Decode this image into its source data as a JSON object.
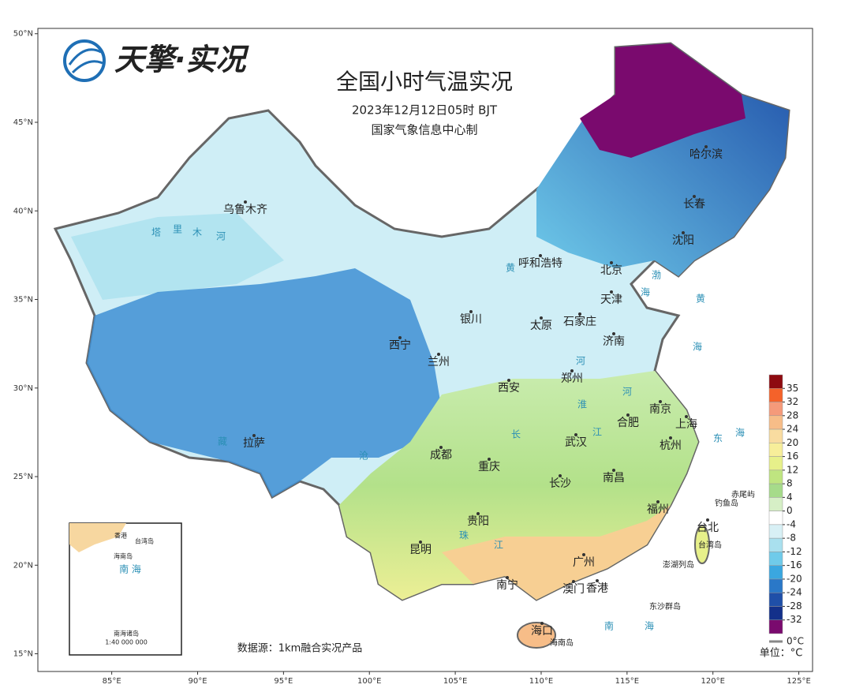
{
  "header": {
    "logo_text": "天擎·实况",
    "title": "全国小时气温实况",
    "subtitle": "2023年12月12日05时 BJT",
    "producer": "国家气象信息中心制"
  },
  "axes": {
    "lat_range": [
      50.3,
      14.0
    ],
    "lat_ticks": [
      {
        "value": 50,
        "label": "50°N"
      },
      {
        "value": 45,
        "label": "45°N"
      },
      {
        "value": 40,
        "label": "40°N"
      },
      {
        "value": 35,
        "label": "35°N"
      },
      {
        "value": 30,
        "label": "30°N"
      },
      {
        "value": 25,
        "label": "25°N"
      },
      {
        "value": 20,
        "label": "20°N"
      },
      {
        "value": 15,
        "label": "15°N"
      }
    ],
    "lon_range": [
      80.7,
      125.8
    ],
    "lon_ticks": [
      {
        "value": 85,
        "label": "85°E"
      },
      {
        "value": 90,
        "label": "90°E"
      },
      {
        "value": 95,
        "label": "95°E"
      },
      {
        "value": 100,
        "label": "100°E"
      },
      {
        "value": 105,
        "label": "105°E"
      },
      {
        "value": 110,
        "label": "110°E"
      },
      {
        "value": 115,
        "label": "115°E"
      },
      {
        "value": 120,
        "label": "120°E"
      },
      {
        "value": 125,
        "label": "125°E"
      }
    ]
  },
  "cities": [
    "乌鲁木齐",
    "哈尔滨",
    "长春",
    "沈阳",
    "呼和浩特",
    "北京",
    "天津",
    "银川",
    "太原",
    "石家庄",
    "济南",
    "西宁",
    "兰州",
    "西安",
    "郑州",
    "南京",
    "合肥",
    "上海",
    "拉萨",
    "成都",
    "武汉",
    "杭州",
    "重庆",
    "长沙",
    "南昌",
    "福州",
    "贵阳",
    "台北",
    "昆明",
    "广州",
    "南宁",
    "澳门",
    "香港",
    "海口"
  ],
  "water_labels": [
    "塔",
    "里",
    "木",
    "河",
    "黄",
    "河",
    "渤",
    "海",
    "黄",
    "海",
    "东",
    "海",
    "长",
    "江",
    "珠",
    "江",
    "淮",
    "河",
    "藏",
    "沧",
    "南",
    "海"
  ],
  "islands": [
    "赤尾屿",
    "钓鱼岛",
    "台湾岛",
    "澎湖列岛",
    "东沙群岛",
    "海南岛"
  ],
  "inset": {
    "labels": [
      "香港",
      "台湾岛",
      "海南岛",
      "南 海",
      "南海诸岛",
      "1:40 000 000"
    ]
  },
  "legend": {
    "ticks": [
      35,
      32,
      28,
      24,
      20,
      16,
      12,
      8,
      4,
      0,
      -4,
      -8,
      -12,
      -16,
      -20,
      -24,
      -28,
      -32
    ],
    "colors": [
      "#8e0b10",
      "#f4622a",
      "#f59a7a",
      "#f7bd88",
      "#f9dca0",
      "#f7ee9a",
      "#e7f08a",
      "#bfe580",
      "#a6db8a",
      "#d6efc6",
      "#ffffff",
      "#d8f0f5",
      "#a9e0ee",
      "#6fcbea",
      "#3aa7e0",
      "#2a78c8",
      "#1f4fa8",
      "#13308a",
      "#7a0a6e"
    ],
    "zero_line": "0°C",
    "unit": "单位：°C"
  },
  "source": "数据源：1km融合实况产品"
}
